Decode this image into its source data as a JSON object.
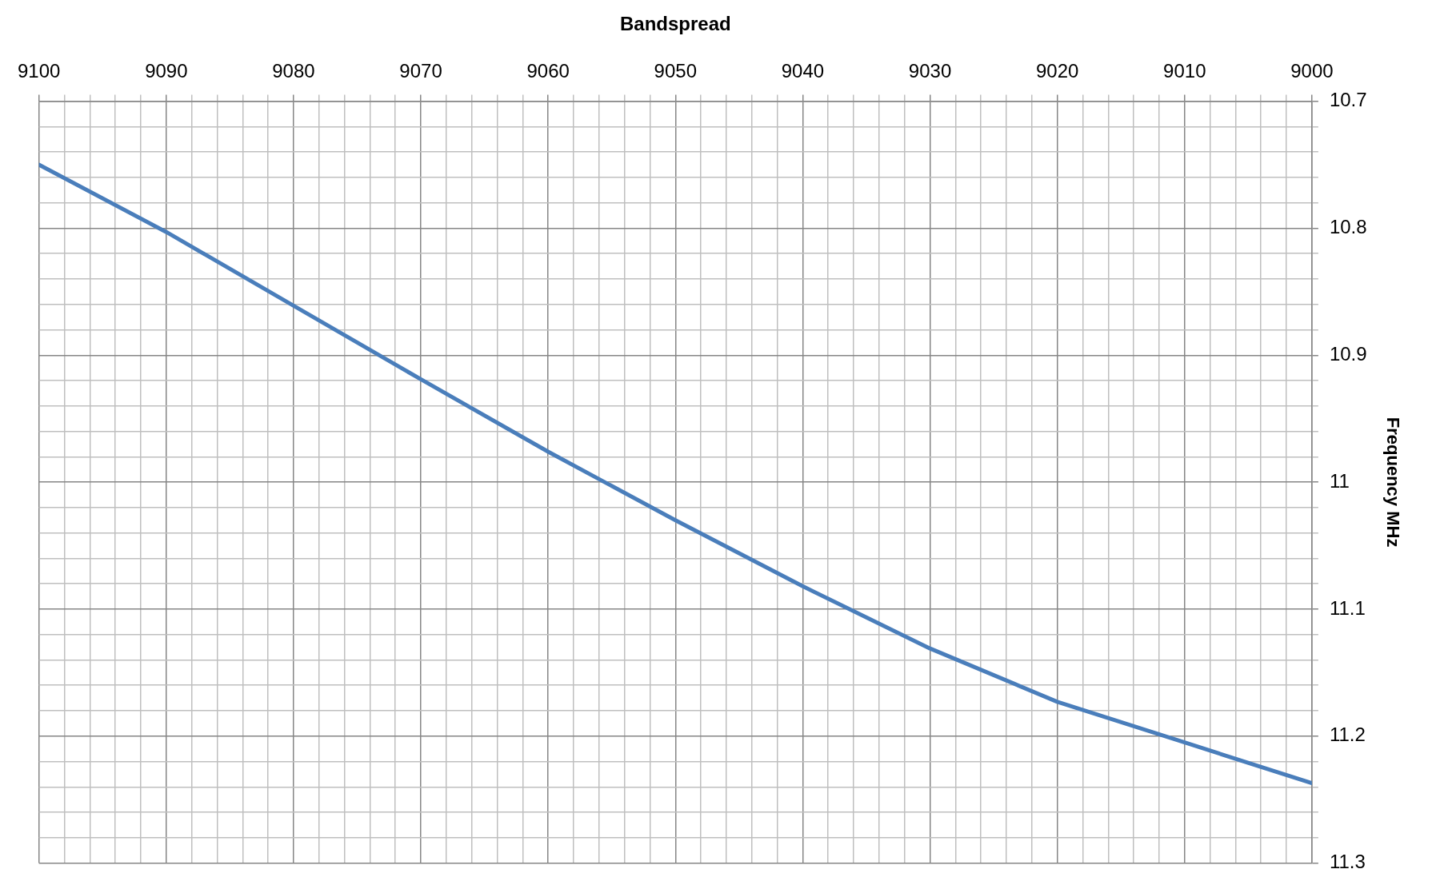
{
  "chart_data": {
    "type": "line",
    "xlabel": "Bandspread",
    "ylabel": "Frequency MHz",
    "x": [
      9100,
      9090,
      9080,
      9070,
      9060,
      9050,
      9040,
      9030,
      9020,
      9010,
      9000
    ],
    "series": [
      {
        "color": "#4a7ebb",
        "values": [
          10.75,
          10.803,
          10.861,
          10.919,
          10.976,
          11.03,
          11.082,
          11.131,
          11.173,
          11.205,
          11.237
        ]
      }
    ],
    "xlim": [
      9100,
      9000
    ],
    "ylim": [
      11.3,
      10.7
    ],
    "xticks": [
      9100,
      {
        "value": 9098,
        "label": null
      },
      {
        "value": 9096,
        "label": null
      },
      {
        "value": 9094,
        "label": null
      },
      {
        "value": 9092,
        "label": null
      },
      9090,
      {
        "value": 9088,
        "label": null
      },
      {
        "value": 9086,
        "label": null
      },
      {
        "value": 9084,
        "label": null
      },
      {
        "value": 9082,
        "label": null
      },
      9080,
      {
        "value": 9078,
        "label": null
      },
      {
        "value": 9076,
        "label": null
      },
      {
        "value": 9074,
        "label": null
      },
      {
        "value": 9072,
        "label": null
      },
      9070,
      {
        "value": 9068,
        "label": null
      },
      {
        "value": 9066,
        "label": null
      },
      {
        "value": 9064,
        "label": null
      },
      {
        "value": 9062,
        "label": null
      },
      9060,
      {
        "value": 9058,
        "label": null
      },
      {
        "value": 9056,
        "label": null
      },
      {
        "value": 9054,
        "label": null
      },
      {
        "value": 9052,
        "label": null
      },
      9050,
      {
        "value": 9048,
        "label": null
      },
      {
        "value": 9046,
        "label": null
      },
      {
        "value": 9044,
        "label": null
      },
      {
        "value": 9042,
        "label": null
      },
      9040,
      {
        "value": 9038,
        "label": null
      },
      {
        "value": 9036,
        "label": null
      },
      {
        "value": 9034,
        "label": null
      },
      {
        "value": 9032,
        "label": null
      },
      9030,
      {
        "value": 9028,
        "label": null
      },
      {
        "value": 9026,
        "label": null
      },
      {
        "value": 9024,
        "label": null
      },
      {
        "value": 9022,
        "label": null
      },
      9020,
      {
        "value": 9018,
        "label": null
      },
      {
        "value": 9016,
        "label": null
      },
      {
        "value": 9014,
        "label": null
      },
      {
        "value": 9012,
        "label": null
      },
      9010,
      {
        "value": 9008,
        "label": null
      },
      {
        "value": 9006,
        "label": null
      },
      {
        "value": 9004,
        "label": null
      },
      {
        "value": 9002,
        "label": null
      },
      9000
    ],
    "yticks": [
      10.7,
      {
        "value": 10.72,
        "label": null
      },
      {
        "value": 10.74,
        "label": null
      },
      {
        "value": 10.76,
        "label": null
      },
      {
        "value": 10.78,
        "label": null
      },
      10.8,
      {
        "value": 10.82,
        "label": null
      },
      {
        "value": 10.84,
        "label": null
      },
      {
        "value": 10.86,
        "label": null
      },
      {
        "value": 10.88,
        "label": null
      },
      10.9,
      {
        "value": 10.92,
        "label": null
      },
      {
        "value": 10.94,
        "label": null
      },
      {
        "value": 10.96,
        "label": null
      },
      {
        "value": 10.98,
        "label": null
      },
      11,
      {
        "value": 11.02,
        "label": null
      },
      {
        "value": 11.04,
        "label": null
      },
      {
        "value": 11.06,
        "label": null
      },
      {
        "value": 11.08,
        "label": null
      },
      11.1,
      {
        "value": 11.12,
        "label": null
      },
      {
        "value": 11.14,
        "label": null
      },
      {
        "value": 11.16,
        "label": null
      },
      {
        "value": 11.18,
        "label": null
      },
      11.2,
      {
        "value": 11.22,
        "label": null
      },
      {
        "value": 11.24,
        "label": null
      },
      {
        "value": 11.26,
        "label": null
      },
      {
        "value": 11.28,
        "label": null
      },
      11.3
    ],
    "grid": true,
    "legend": false,
    "marker": "none",
    "line_style": "solid"
  }
}
